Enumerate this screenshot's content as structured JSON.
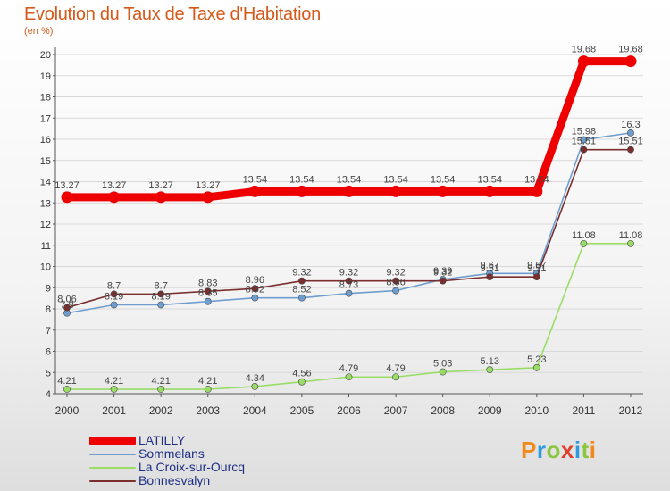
{
  "title": "Evolution du Taux de Taxe d'Habitation",
  "subtitle": "(en %)",
  "brand": "Proxiti",
  "colors": {
    "title": "#d55a1a",
    "axis": "#555555",
    "grid": "#d9d9d9",
    "legend_text": "#1e2f86"
  },
  "chart_data": {
    "type": "line",
    "x": [
      "2000",
      "2001",
      "2002",
      "2003",
      "2004",
      "2005",
      "2006",
      "2007",
      "2008",
      "2009",
      "2010",
      "2011",
      "2012"
    ],
    "ylim": [
      4,
      20
    ],
    "yticks": [
      4,
      5,
      6,
      7,
      8,
      9,
      10,
      11,
      12,
      13,
      14,
      15,
      16,
      17,
      18,
      19,
      20
    ],
    "grid": "horizontal",
    "legend_position": "bottom-left",
    "series": [
      {
        "name": "LATILLY",
        "color": "#ee0000",
        "values": [
          13.27,
          13.27,
          13.27,
          13.27,
          13.54,
          13.54,
          13.54,
          13.54,
          13.54,
          13.54,
          13.54,
          19.68,
          19.68
        ],
        "labels": [
          "13.27",
          "13.27",
          "13.27",
          "13.27",
          "13.54",
          "13.54",
          "13.54",
          "13.54",
          "13.54",
          "13.54",
          "13.54",
          "19.68",
          "19.68"
        ]
      },
      {
        "name": "Sommelans",
        "color": "#6e9ed0",
        "values": [
          7.8,
          8.19,
          8.19,
          8.35,
          8.52,
          8.52,
          8.73,
          8.86,
          9.39,
          9.67,
          9.67,
          15.98,
          16.3
        ],
        "labels": [
          "7.8",
          "8.19",
          "8.19",
          "8.35",
          "8.52",
          "8.52",
          "8.73",
          "8.86",
          "9.39",
          "9.67",
          "9.67",
          "15.98",
          "16.3"
        ]
      },
      {
        "name": "La Croix-sur-Ourcq",
        "color": "#99dd66",
        "values": [
          4.21,
          4.21,
          4.21,
          4.21,
          4.34,
          4.56,
          4.79,
          4.79,
          5.03,
          5.13,
          5.23,
          11.08,
          11.08
        ],
        "labels": [
          "4.21",
          "4.21",
          "4.21",
          "4.21",
          "4.34",
          "4.56",
          "4.79",
          "4.79",
          "5.03",
          "5.13",
          "5.23",
          "11.08",
          "11.08"
        ]
      },
      {
        "name": "Bonnesvalyn",
        "color": "#7a2e2e",
        "values": [
          8.06,
          8.7,
          8.7,
          8.83,
          8.96,
          9.32,
          9.32,
          9.32,
          9.32,
          9.51,
          9.51,
          15.51,
          15.51
        ],
        "labels": [
          "8.06",
          "8.7",
          "8.7",
          "8.83",
          "8.96",
          "9.32",
          "9.32",
          "9.32",
          "9.32",
          "9.51",
          "9.51",
          "15.51",
          "15.51"
        ]
      }
    ]
  }
}
